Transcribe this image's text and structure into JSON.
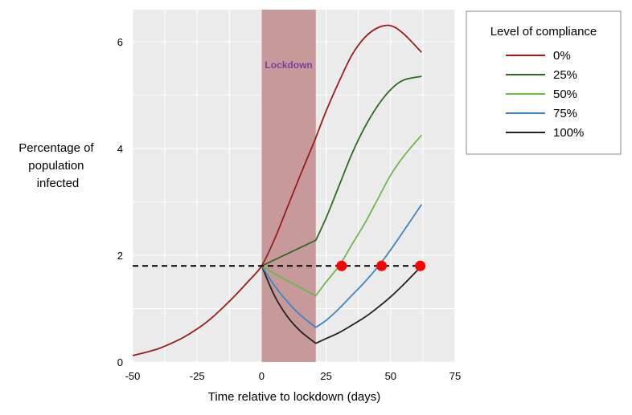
{
  "chart_data": {
    "type": "line",
    "title": "",
    "xlabel": "Time relative to lockdown (days)",
    "ylabel": "Percentage of population infected",
    "ylabel_lines": [
      "Percentage of",
      "population",
      "infected"
    ],
    "xlim": [
      -50,
      75
    ],
    "ylim": [
      0,
      6.6
    ],
    "xticks": [
      -50,
      -25,
      0,
      25,
      50,
      75
    ],
    "yticks": [
      0,
      2,
      4,
      6
    ],
    "grid": true,
    "background_color": "#ebebeb",
    "annotation": {
      "label": "Lockdown",
      "x_start": 0,
      "x_end": 21,
      "color": "#c8999a",
      "label_color": "#7b3fa1"
    },
    "threshold": {
      "y": 1.8,
      "x_start": -50,
      "x_end": 62,
      "style": "dashed",
      "color": "#000000"
    },
    "markers": {
      "color": "#ff0000",
      "points": [
        {
          "x": 31,
          "y": 1.8
        },
        {
          "x": 46.5,
          "y": 1.8
        },
        {
          "x": 61.5,
          "y": 1.8
        }
      ]
    },
    "legend": {
      "title": "Level of compliance",
      "position": "top-right"
    },
    "series": [
      {
        "name": "0%",
        "color": "#9b1c1c",
        "x": [
          -50,
          -45,
          -40,
          -35,
          -30,
          -25,
          -20,
          -15,
          -10,
          -5,
          0,
          5,
          10,
          15,
          21,
          25,
          30,
          35,
          40,
          45,
          50,
          55,
          62
        ],
        "y": [
          0.12,
          0.18,
          0.25,
          0.35,
          0.47,
          0.62,
          0.8,
          1.02,
          1.26,
          1.52,
          1.8,
          2.3,
          2.9,
          3.5,
          4.2,
          4.7,
          5.25,
          5.75,
          6.08,
          6.26,
          6.3,
          6.15,
          5.8
        ]
      },
      {
        "name": "25%",
        "color": "#2e6b1f",
        "x": [
          0,
          7,
          14,
          21,
          25,
          30,
          35,
          40,
          45,
          50,
          55,
          62
        ],
        "y": [
          1.8,
          1.96,
          2.12,
          2.28,
          2.7,
          3.3,
          3.9,
          4.4,
          4.8,
          5.1,
          5.28,
          5.35
        ]
      },
      {
        "name": "50%",
        "color": "#6cb84c",
        "x": [
          0,
          7,
          14,
          21,
          25,
          30,
          35,
          40,
          45,
          50,
          55,
          62
        ],
        "y": [
          1.8,
          1.6,
          1.42,
          1.24,
          1.5,
          1.8,
          2.2,
          2.6,
          3.05,
          3.5,
          3.85,
          4.25
        ]
      },
      {
        "name": "75%",
        "color": "#3d86c6",
        "x": [
          0,
          5,
          10,
          15,
          21,
          25,
          30,
          35,
          40,
          45,
          50,
          55,
          62
        ],
        "y": [
          1.8,
          1.43,
          1.13,
          0.88,
          0.65,
          0.78,
          1.0,
          1.25,
          1.5,
          1.78,
          2.1,
          2.45,
          2.95
        ]
      },
      {
        "name": "100%",
        "color": "#222222",
        "x": [
          0,
          5,
          10,
          15,
          21,
          25,
          30,
          35,
          40,
          45,
          50,
          55,
          62
        ],
        "y": [
          1.8,
          1.24,
          0.85,
          0.58,
          0.35,
          0.44,
          0.55,
          0.69,
          0.84,
          1.02,
          1.22,
          1.45,
          1.8
        ]
      }
    ]
  }
}
